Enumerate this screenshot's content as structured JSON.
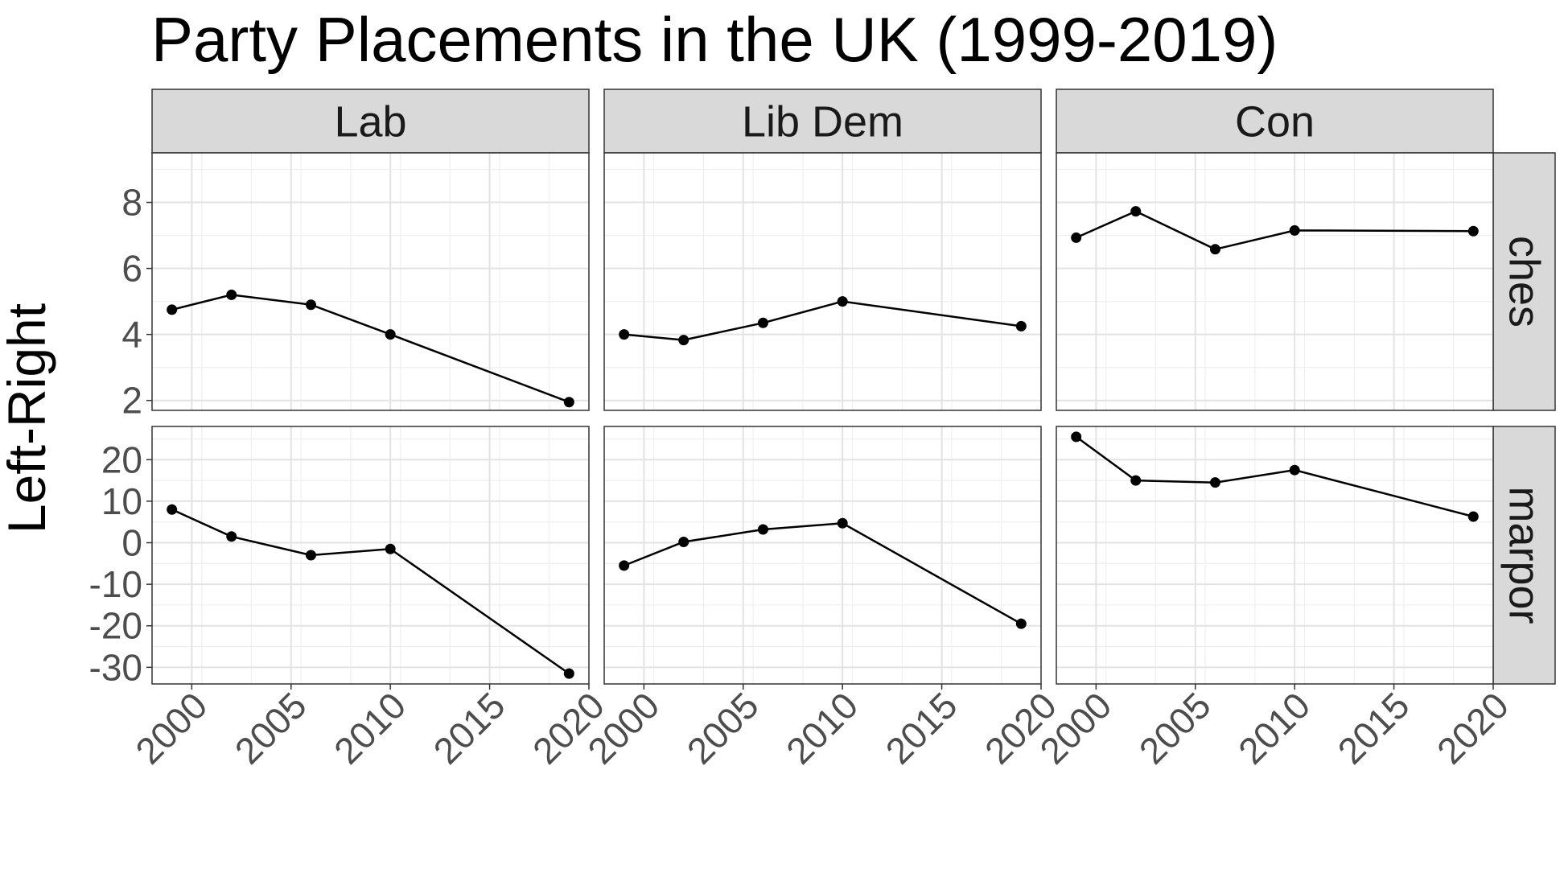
{
  "chart_data": {
    "type": "line",
    "title": "Party Placements in the UK (1999-2019)",
    "xlabel": "",
    "ylabel": "Left-Right",
    "grid": true,
    "legend": "none",
    "facet_columns": [
      "Lab",
      "Lib Dem",
      "Con"
    ],
    "facet_rows": [
      "ches",
      "marpor"
    ],
    "x_ticks": [
      2000,
      2005,
      2010,
      2015,
      2020
    ],
    "xlim": [
      1998,
      2020
    ],
    "rows": {
      "ches": {
        "ylim": [
          1.7,
          9.5
        ],
        "y_ticks": [
          2,
          4,
          6,
          8
        ]
      },
      "marpor": {
        "ylim": [
          -34,
          28
        ],
        "y_ticks": [
          -30,
          -20,
          -10,
          0,
          10,
          20
        ]
      }
    },
    "series": [
      {
        "party": "Lab",
        "measure": "ches",
        "x": [
          1999,
          2002,
          2006,
          2010,
          2019
        ],
        "y": [
          4.75,
          5.2,
          4.9,
          4.0,
          1.95
        ]
      },
      {
        "party": "Lib Dem",
        "measure": "ches",
        "x": [
          1999,
          2002,
          2006,
          2010,
          2019
        ],
        "y": [
          4.0,
          3.83,
          4.35,
          5.0,
          4.25
        ]
      },
      {
        "party": "Con",
        "measure": "ches",
        "x": [
          1999,
          2002,
          2006,
          2010,
          2019
        ],
        "y": [
          6.93,
          7.73,
          6.58,
          7.15,
          7.13
        ]
      },
      {
        "party": "Lab",
        "measure": "marpor",
        "x": [
          1999,
          2002,
          2006,
          2010,
          2019
        ],
        "y": [
          8.0,
          1.5,
          -3.0,
          -1.5,
          -31.5
        ]
      },
      {
        "party": "Lib Dem",
        "measure": "marpor",
        "x": [
          1999,
          2002,
          2006,
          2010,
          2019
        ],
        "y": [
          -5.5,
          0.2,
          3.2,
          4.7,
          -19.5
        ]
      },
      {
        "party": "Con",
        "measure": "marpor",
        "x": [
          1999,
          2002,
          2006,
          2010,
          2019
        ],
        "y": [
          25.5,
          15.0,
          14.5,
          17.5,
          6.3
        ]
      }
    ]
  }
}
